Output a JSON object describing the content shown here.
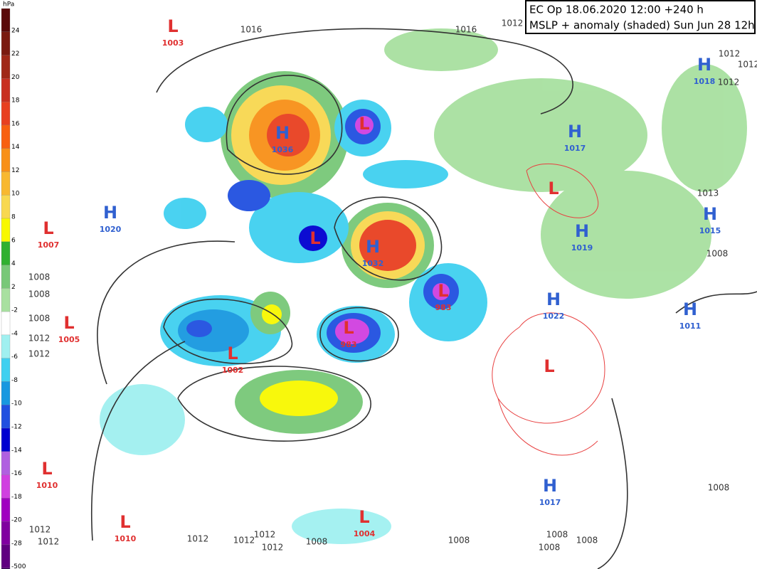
{
  "header": {
    "line1": "EC Op 18.06.2020 12:00 +240 h",
    "line2": "MSLP + anomaly (shaded) Sun Jun 28 12h"
  },
  "colorbar": {
    "unit": "hPa",
    "labels": [
      24,
      22,
      20,
      18,
      16,
      14,
      12,
      10,
      8,
      6,
      4,
      2,
      -2,
      -4,
      -6,
      -8,
      -10,
      -12,
      -14,
      -16,
      -18,
      -20,
      -28,
      -500
    ]
  },
  "centers": [
    {
      "letter": "L",
      "value": "1003"
    },
    {
      "letter": "H",
      "value": "1036"
    },
    {
      "letter": "L"
    },
    {
      "letter": "H",
      "value": "1020"
    },
    {
      "letter": "L",
      "value": "1007"
    },
    {
      "letter": "L"
    },
    {
      "letter": "H",
      "value": "1032"
    },
    {
      "letter": "L",
      "value": "983"
    },
    {
      "letter": "L",
      "value": "983"
    },
    {
      "letter": "L",
      "value": "1005"
    },
    {
      "letter": "L",
      "value": "1002"
    },
    {
      "letter": "H",
      "value": "1017"
    },
    {
      "letter": "H",
      "value": "1018"
    },
    {
      "letter": "H",
      "value": "1015"
    },
    {
      "letter": "H",
      "value": "1019"
    },
    {
      "letter": "L"
    },
    {
      "letter": "H",
      "value": "1022"
    },
    {
      "letter": "H",
      "value": "1011"
    },
    {
      "letter": "L"
    },
    {
      "letter": "L",
      "value": "1010"
    },
    {
      "letter": "L",
      "value": "1010"
    },
    {
      "letter": "L",
      "value": "1004"
    },
    {
      "letter": "H",
      "value": "1017"
    }
  ],
  "isobar_labels": [
    "1016",
    "1016",
    "1012",
    "1012",
    "1012",
    "1012",
    "1013",
    "1008",
    "1008",
    "1008",
    "1008",
    "1012",
    "1012",
    "1008",
    "1012",
    "1012",
    "1012",
    "1012",
    "1008",
    "1008",
    "1008",
    "1008",
    "1008",
    "1012",
    "1012"
  ]
}
